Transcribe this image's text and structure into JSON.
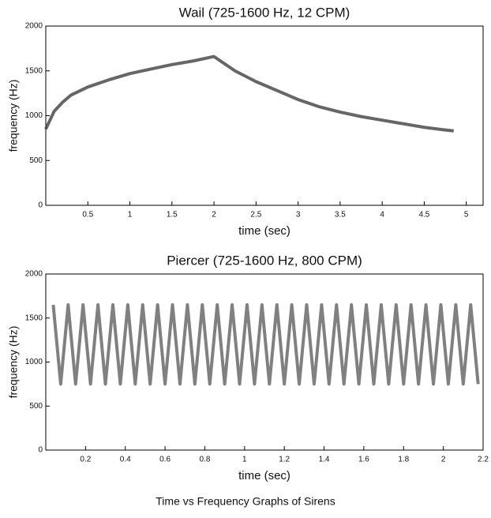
{
  "chart_data": [
    {
      "type": "line",
      "title": "Wail (725-1600 Hz, 12 CPM)",
      "x_label": "time (sec)",
      "y_label": "frequency (Hz)",
      "x": [
        0,
        0.1,
        0.2,
        0.3,
        0.5,
        0.75,
        1,
        1.25,
        1.5,
        1.75,
        2,
        2.25,
        2.5,
        2.75,
        3,
        3.25,
        3.5,
        3.75,
        4,
        4.25,
        4.5,
        4.75,
        4.85
      ],
      "values": [
        850,
        1050,
        1150,
        1230,
        1320,
        1400,
        1470,
        1520,
        1570,
        1610,
        1660,
        1500,
        1380,
        1280,
        1180,
        1100,
        1040,
        990,
        950,
        910,
        870,
        840,
        830
      ],
      "color": "#333333",
      "xlim": [
        0,
        5.2
      ],
      "xticks": [
        0.5,
        1,
        1.5,
        2,
        2.5,
        3,
        3.5,
        4,
        4.5,
        5
      ],
      "ylim": [
        0,
        2000
      ],
      "yticks": [
        0,
        500,
        1000,
        1500,
        2000
      ]
    },
    {
      "type": "line",
      "title": "Piercer (725-1600 Hz, 800 CPM)",
      "x_label": "time (sec)",
      "y_label": "frequency (Hz)",
      "x": [
        0.0375,
        0.075,
        0.1125,
        0.15,
        0.1875,
        0.225,
        0.2625,
        0.3,
        0.3375,
        0.375,
        0.4125,
        0.45,
        0.4875,
        0.525,
        0.5625,
        0.6,
        0.6375,
        0.675,
        0.7125,
        0.75,
        0.7875,
        0.825,
        0.8625,
        0.9,
        0.9375,
        0.975,
        1.0125,
        1.05,
        1.0875,
        1.125,
        1.1625,
        1.2,
        1.2375,
        1.275,
        1.3125,
        1.35,
        1.3875,
        1.425,
        1.4625,
        1.5,
        1.5375,
        1.575,
        1.6125,
        1.65,
        1.6875,
        1.725,
        1.7625,
        1.8,
        1.8375,
        1.875,
        1.9125,
        1.95,
        1.9875,
        2.025,
        2.0625,
        2.1,
        2.1375,
        2.175
      ],
      "values": [
        1650,
        750,
        1650,
        750,
        1650,
        750,
        1650,
        750,
        1650,
        750,
        1650,
        750,
        1650,
        750,
        1650,
        750,
        1650,
        750,
        1650,
        750,
        1650,
        750,
        1650,
        750,
        1650,
        750,
        1650,
        750,
        1650,
        750,
        1650,
        750,
        1650,
        750,
        1650,
        750,
        1650,
        750,
        1650,
        750,
        1650,
        750,
        1650,
        750,
        1650,
        750,
        1650,
        750,
        1650,
        750,
        1650,
        750,
        1650,
        750,
        1650,
        750,
        1650,
        750
      ],
      "color": "#555555",
      "xlim": [
        0,
        2.2
      ],
      "xticks": [
        0.2,
        0.4,
        0.6,
        0.8,
        1,
        1.2,
        1.4,
        1.6,
        1.8,
        2,
        2.2
      ],
      "ylim": [
        0,
        2000
      ],
      "yticks": [
        0,
        500,
        1000,
        1500,
        2000
      ]
    }
  ],
  "caption": "Time vs Frequency Graphs of Sirens"
}
